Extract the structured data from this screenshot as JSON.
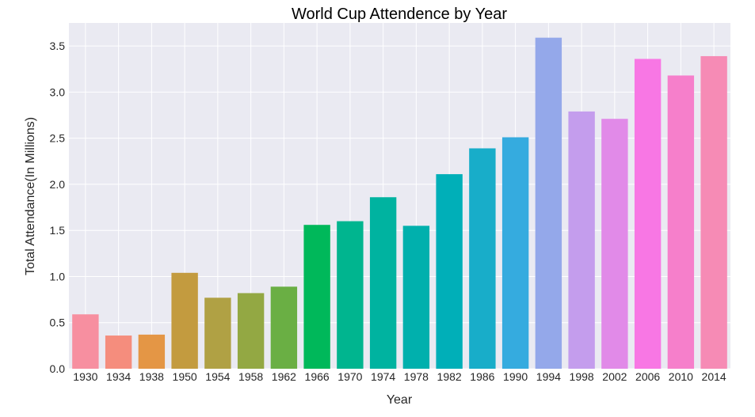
{
  "chart_data": {
    "type": "bar",
    "title": "World Cup Attendence by Year",
    "xlabel": "Year",
    "ylabel": "Total Attendance(In Millions)",
    "ylim": [
      0,
      3.75
    ],
    "yticks": [
      "0.0",
      "0.5",
      "1.0",
      "1.5",
      "2.0",
      "2.5",
      "3.0",
      "3.5"
    ],
    "grid": true,
    "categories": [
      "1930",
      "1934",
      "1938",
      "1950",
      "1954",
      "1958",
      "1962",
      "1966",
      "1970",
      "1974",
      "1978",
      "1982",
      "1986",
      "1990",
      "1994",
      "1998",
      "2002",
      "2006",
      "2010",
      "2014"
    ],
    "values": [
      0.59,
      0.36,
      0.37,
      1.04,
      0.77,
      0.82,
      0.89,
      1.56,
      1.6,
      1.86,
      1.55,
      2.11,
      2.39,
      2.51,
      3.59,
      2.79,
      2.71,
      3.36,
      3.18,
      3.39
    ],
    "colors": [
      "#f78fa0",
      "#f58d7d",
      "#e49645",
      "#c39b3f",
      "#b0a144",
      "#93a843",
      "#6aaf44",
      "#00b85a",
      "#00b58f",
      "#00b3a0",
      "#00b0ad",
      "#00afb8",
      "#18adc9",
      "#35abdf",
      "#94a8ea",
      "#c49ded",
      "#e18ae8",
      "#f877e4",
      "#f67fcb",
      "#f68bb5"
    ],
    "background": "#eaeaf2",
    "gridcolor": "#ffffff"
  }
}
